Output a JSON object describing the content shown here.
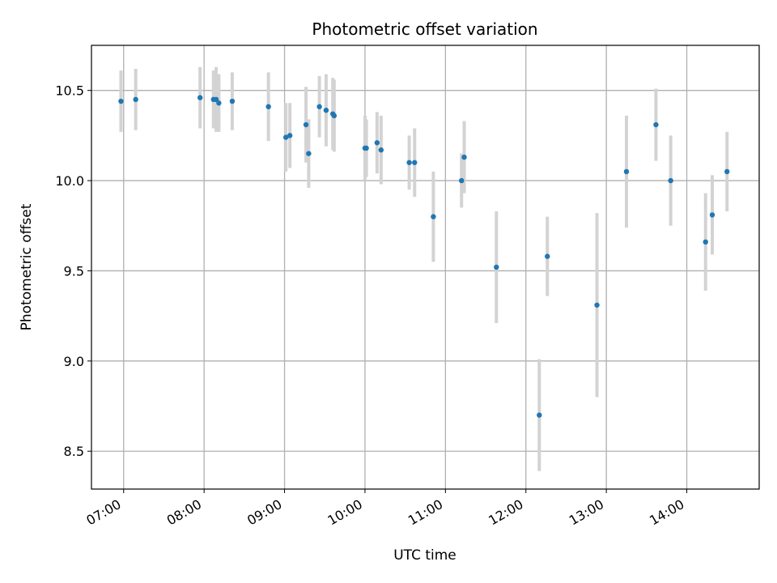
{
  "chart_data": {
    "type": "scatter",
    "title": "Photometric offset variation",
    "xlabel": "UTC time",
    "ylabel": "Photometric offset",
    "grid": true,
    "xlim": [
      "06:36",
      "14:54"
    ],
    "ylim": [
      8.29,
      10.75
    ],
    "x_ticks": [
      "07:00",
      "08:00",
      "09:00",
      "10:00",
      "11:00",
      "12:00",
      "13:00",
      "14:00"
    ],
    "y_ticks": [
      "8.5",
      "9.0",
      "9.5",
      "10.0",
      "10.5"
    ],
    "point_color": "#1f77b4",
    "errorbar_color": "#d3d3d3",
    "points": [
      {
        "x": "06:58",
        "y": 10.44,
        "err": 0.17
      },
      {
        "x": "07:09",
        "y": 10.45,
        "err": 0.17
      },
      {
        "x": "07:57",
        "y": 10.46,
        "err": 0.17
      },
      {
        "x": "08:07",
        "y": 10.45,
        "err": 0.16
      },
      {
        "x": "08:09",
        "y": 10.45,
        "err": 0.18
      },
      {
        "x": "08:11",
        "y": 10.43,
        "err": 0.16
      },
      {
        "x": "08:21",
        "y": 10.44,
        "err": 0.16
      },
      {
        "x": "08:48",
        "y": 10.41,
        "err": 0.19
      },
      {
        "x": "09:01",
        "y": 10.24,
        "err": 0.19
      },
      {
        "x": "09:04",
        "y": 10.25,
        "err": 0.18
      },
      {
        "x": "09:16",
        "y": 10.31,
        "err": 0.21
      },
      {
        "x": "09:18",
        "y": 10.15,
        "err": 0.19
      },
      {
        "x": "09:26",
        "y": 10.41,
        "err": 0.17
      },
      {
        "x": "09:31",
        "y": 10.39,
        "err": 0.2
      },
      {
        "x": "09:36",
        "y": 10.37,
        "err": 0.2
      },
      {
        "x": "09:37",
        "y": 10.36,
        "err": 0.2
      },
      {
        "x": "10:00",
        "y": 10.18,
        "err": 0.18
      },
      {
        "x": "10:01",
        "y": 10.18,
        "err": 0.16
      },
      {
        "x": "10:09",
        "y": 10.21,
        "err": 0.17
      },
      {
        "x": "10:12",
        "y": 10.17,
        "err": 0.19
      },
      {
        "x": "10:33",
        "y": 10.1,
        "err": 0.15
      },
      {
        "x": "10:37",
        "y": 10.1,
        "err": 0.19
      },
      {
        "x": "10:51",
        "y": 9.8,
        "err": 0.25
      },
      {
        "x": "11:12",
        "y": 10.0,
        "err": 0.15
      },
      {
        "x": "11:14",
        "y": 10.13,
        "err": 0.2
      },
      {
        "x": "11:38",
        "y": 9.52,
        "err": 0.31
      },
      {
        "x": "12:10",
        "y": 8.7,
        "err": 0.31
      },
      {
        "x": "12:16",
        "y": 9.58,
        "err": 0.22
      },
      {
        "x": "12:53",
        "y": 9.31,
        "err": 0.51
      },
      {
        "x": "13:15",
        "y": 10.05,
        "err": 0.31
      },
      {
        "x": "13:37",
        "y": 10.31,
        "err": 0.2
      },
      {
        "x": "13:48",
        "y": 10.0,
        "err": 0.25
      },
      {
        "x": "14:14",
        "y": 9.66,
        "err": 0.27
      },
      {
        "x": "14:19",
        "y": 9.81,
        "err": 0.22
      },
      {
        "x": "14:30",
        "y": 10.05,
        "err": 0.22
      }
    ]
  }
}
